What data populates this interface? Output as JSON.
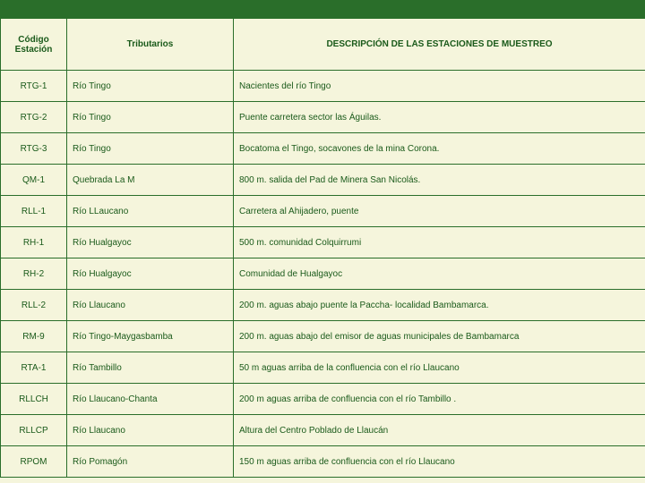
{
  "columns": {
    "codigo": "Código Estación",
    "tributarios": "Tributarios",
    "descripcion": "DESCRIPCIÓN DE LAS ESTACIONES DE MUESTREO"
  },
  "rows": [
    {
      "code": "RTG-1",
      "trib": "Río Tingo",
      "desc": "Nacientes del río Tingo"
    },
    {
      "code": "RTG-2",
      "trib": "Río Tingo",
      "desc": "Puente carretera sector las Águilas."
    },
    {
      "code": "RTG-3",
      "trib": "Río Tingo",
      "desc": "Bocatoma el Tingo, socavones de la mina Corona."
    },
    {
      "code": "QM-1",
      "trib": "Quebrada La M",
      "desc": "800 m. salida del Pad de Minera San Nicolás."
    },
    {
      "code": "RLL-1",
      "trib": "Río LLaucano",
      "desc": "Carretera al Ahijadero, puente"
    },
    {
      "code": "RH-1",
      "trib": "Río Hualgayoc",
      "desc": "500 m. comunidad Colquirrumi"
    },
    {
      "code": "RH-2",
      "trib": "Río Hualgayoc",
      "desc": "Comunidad de Hualgayoc"
    },
    {
      "code": "RLL-2",
      "trib": "Río Llaucano",
      "desc": "200 m. aguas abajo puente la Paccha- localidad  Bambamarca."
    },
    {
      "code": "RM-9",
      "trib": "Río Tingo-Maygasbamba",
      "desc": "200 m. aguas abajo del emisor de aguas municipales de Bambamarca"
    },
    {
      "code": "RTA-1",
      "trib": "Río Tambillo",
      "desc": "50 m aguas arriba de la confluencia con el río Llaucano"
    },
    {
      "code": "RLLCH",
      "trib": "Río Llaucano-Chanta",
      "desc": "200 m aguas arriba de confluencia con el río Tambillo ."
    },
    {
      "code": "RLLCP",
      "trib": "Río Llaucano",
      "desc": "Altura del Centro Poblado de Llaucán"
    },
    {
      "code": "RPOM",
      "trib": "Río Pomagón",
      "desc": "150 m aguas arriba de confluencia con el río Llaucano"
    }
  ]
}
